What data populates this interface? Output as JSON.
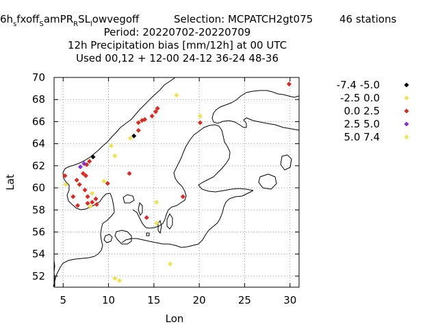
{
  "title": {
    "line1": {
      "prefix": "6h",
      "sub1": "s",
      "mid1": "fxoff",
      "sub2": "S",
      "mid2": "amPR",
      "sub3": "R",
      "mid3": "SL",
      "sub4": "l",
      "mid4": "owvegoff",
      "selection": "Selection: MCPATCH2gt075",
      "stations": "46 stations"
    },
    "line2": "Period: 20220702-20220709",
    "line3": "12h Precipitation bias [mm/12h] at  00 UTC",
    "line4": "Used  00,12  + 12-00 24-12 36-24 48-36"
  },
  "chart_data": {
    "type": "scatter",
    "xlabel": "Lon",
    "ylabel": "Lat",
    "xlim": [
      4,
      31
    ],
    "ylim": [
      51,
      70
    ],
    "xticks": [
      "5",
      "10",
      "15",
      "20",
      "25",
      "30"
    ],
    "yticks": [
      "52",
      "54",
      "56",
      "58",
      "60",
      "62",
      "64",
      "66",
      "68",
      "70"
    ],
    "xtick_values": [
      5,
      10,
      15,
      20,
      25,
      30
    ],
    "ytick_values": [
      52,
      54,
      56,
      58,
      60,
      62,
      64,
      66,
      68,
      70
    ],
    "grid": true,
    "legend_position": "top-right",
    "series": [
      {
        "name": "-7.4 -5.0",
        "color": "#000000",
        "points": [
          [
            8.3,
            62.8
          ],
          [
            12.8,
            64.7
          ]
        ]
      },
      {
        "name": "-2.5 0.0",
        "color": "#f2e24a",
        "points": [
          [
            10.3,
            63.8
          ],
          [
            12.4,
            64.5
          ],
          [
            17.5,
            68.4
          ],
          [
            20.1,
            66.5
          ],
          [
            10.7,
            62.9
          ],
          [
            5.3,
            60.3
          ],
          [
            9.5,
            60.6
          ],
          [
            8.0,
            58.3
          ],
          [
            8.2,
            59.5
          ],
          [
            15.3,
            58.7
          ],
          [
            15.3,
            56.8
          ],
          [
            16.8,
            53.1
          ],
          [
            10.7,
            51.8
          ],
          [
            11.2,
            51.6
          ]
        ]
      },
      {
        "name": "0.0 2.5",
        "color": "#e1261c",
        "points": [
          [
            29.9,
            69.4
          ],
          [
            15.4,
            67.2
          ],
          [
            15.2,
            66.9
          ],
          [
            14.8,
            66.5
          ],
          [
            13.3,
            65.9
          ],
          [
            13.7,
            66.1
          ],
          [
            14.0,
            66.2
          ],
          [
            13.3,
            65.2
          ],
          [
            20.1,
            65.9
          ],
          [
            7.6,
            62.1
          ],
          [
            7.9,
            62.4
          ],
          [
            7.2,
            61.3
          ],
          [
            7.5,
            61.1
          ],
          [
            6.5,
            60.7
          ],
          [
            5.2,
            61.1
          ],
          [
            6.8,
            60.3
          ],
          [
            6.1,
            59.2
          ],
          [
            6.6,
            58.4
          ],
          [
            7.4,
            59.8
          ],
          [
            7.7,
            59.2
          ],
          [
            8.2,
            58.7
          ],
          [
            7.7,
            58.6
          ],
          [
            8.6,
            59.0
          ],
          [
            8.7,
            58.5
          ],
          [
            9.9,
            60.4
          ],
          [
            12.3,
            61.3
          ],
          [
            14.2,
            57.3
          ],
          [
            18.2,
            59.2
          ]
        ]
      },
      {
        "name": "2.5 5.0",
        "color": "#8a2be2",
        "points": [
          [
            6.9,
            61.9
          ],
          [
            7.3,
            62.2
          ]
        ]
      },
      {
        "name": "5.0 7.4",
        "color": "#f2e24a",
        "points": []
      }
    ]
  }
}
